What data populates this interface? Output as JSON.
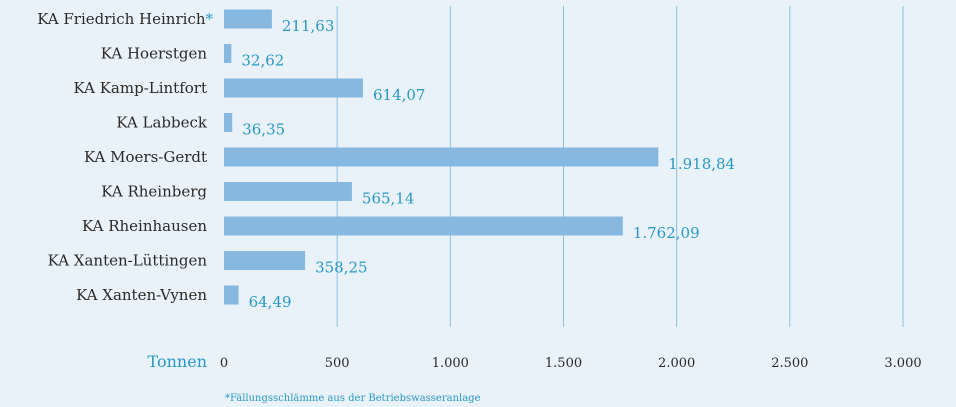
{
  "chart_data": {
    "type": "bar",
    "orientation": "horizontal",
    "categories": [
      "KA Friedrich Heinrich",
      "KA Hoerstgen",
      "KA Kamp-Lintfort",
      "KA Labbeck",
      "KA Moers-Gerdt",
      "KA Rheinberg",
      "KA Rheinhausen",
      "KA Xanten-Lüttingen",
      "KA Xanten-Vynen"
    ],
    "category_markers": [
      "*",
      "",
      "",
      "",
      "",
      "",
      "",
      "",
      ""
    ],
    "values": [
      211.63,
      32.62,
      614.07,
      36.35,
      1918.84,
      565.14,
      1762.09,
      358.25,
      64.49
    ],
    "value_labels": [
      "211,63",
      "32,62",
      "614,07",
      "36,35",
      "1.918,84",
      "565,14",
      "1.762,09",
      "358,25",
      "64,49"
    ],
    "xlim": [
      0,
      3000
    ],
    "ticks": [
      0,
      500,
      1000,
      1500,
      2000,
      2500,
      3000
    ],
    "tick_labels": [
      "0",
      "500",
      "1.000",
      "1.500",
      "2.000",
      "2.500",
      "3.000"
    ],
    "xlabel": "Tonnen",
    "footnote": "*Fällungsschlämme aus der Betriebswasseranlage",
    "grid": true,
    "colors": {
      "background": "#e9f2f8",
      "bar": "#86b8e0",
      "grid": "#8cc2e0",
      "accent_text": "#2a98c7",
      "label_text": "#2a2a2a"
    }
  }
}
